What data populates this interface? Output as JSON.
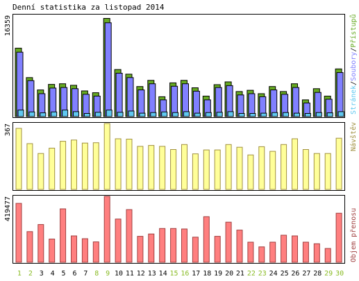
{
  "title": "Denní statistika za listopad 2014",
  "colors": {
    "background": "#ffffff",
    "frame": "#000000",
    "grid": "#000000",
    "hits": "#66aa22",
    "files": "#8080ff",
    "pages": "#60c8f0",
    "visits": "#ffff99",
    "visits_stroke": "#a09040",
    "kbytes": "#ff7f7f",
    "kbytes_stroke": "#a04040",
    "weekend_label": "#88bb22",
    "weekday_label": "#000000"
  },
  "days": [
    "1",
    "2",
    "3",
    "4",
    "5",
    "6",
    "7",
    "8",
    "9",
    "10",
    "11",
    "12",
    "13",
    "14",
    "15",
    "16",
    "17",
    "18",
    "19",
    "20",
    "21",
    "22",
    "23",
    "24",
    "25",
    "26",
    "27",
    "28",
    "29",
    "30"
  ],
  "weekend_days": [
    "1",
    "2",
    "8",
    "9",
    "15",
    "16",
    "22",
    "23",
    "29",
    "30"
  ],
  "chart_data": [
    {
      "type": "bar",
      "id": "hits-files-pages",
      "ymax_label": "16359",
      "ylim": [
        0,
        16359
      ],
      "legend": {
        "pages_label": "Stránek",
        "sep1": "/",
        "files_label": "Soubory",
        "sep2": "/",
        "hits_label": "Přístupů"
      },
      "series": [
        {
          "name": "Přístupů",
          "key": "hits",
          "values": [
            11050,
            6300,
            4300,
            5200,
            5300,
            5050,
            4150,
            3850,
            15850,
            7600,
            6850,
            4850,
            5850,
            3200,
            5450,
            5850,
            4650,
            3300,
            5150,
            5600,
            4050,
            4250,
            3700,
            4850,
            4050,
            5300,
            2700,
            4500,
            3300,
            7700
          ]
        },
        {
          "name": "Soubory",
          "key": "files",
          "values": [
            10400,
            5800,
            3700,
            4600,
            4700,
            4500,
            3600,
            3300,
            15150,
            7000,
            6300,
            4300,
            5300,
            2700,
            4900,
            5300,
            4100,
            2700,
            4700,
            5000,
            3500,
            3700,
            3200,
            4300,
            3600,
            4700,
            2200,
            3900,
            2800,
            7100
          ]
        },
        {
          "name": "Stránek",
          "key": "pages",
          "values": [
            1050,
            750,
            600,
            750,
            1050,
            800,
            500,
            700,
            1050,
            700,
            900,
            550,
            650,
            750,
            650,
            800,
            550,
            650,
            700,
            800,
            500,
            500,
            550,
            650,
            650,
            550,
            500,
            650,
            600,
            800
          ]
        }
      ]
    },
    {
      "type": "bar",
      "id": "visits",
      "ymax_label": "367",
      "ylim": [
        0,
        367
      ],
      "legend": {
        "label": "Návštěv"
      },
      "series": [
        {
          "name": "Návštěv",
          "key": "visits",
          "values": [
            340,
            255,
            200,
            230,
            268,
            275,
            258,
            260,
            367,
            282,
            280,
            240,
            245,
            240,
            222,
            250,
            198,
            220,
            220,
            250,
            235,
            192,
            238,
            212,
            250,
            282,
            222,
            200,
            200,
            285
          ]
        }
      ]
    },
    {
      "type": "bar",
      "id": "kbytes",
      "ymax_label": "419477",
      "ylim": [
        0,
        419477
      ],
      "legend": {
        "label": "Objem přenosu"
      },
      "series": [
        {
          "name": "Objem přenosu",
          "key": "kbytes",
          "values": [
            375000,
            195000,
            240000,
            148000,
            340000,
            168000,
            150000,
            130000,
            419477,
            275000,
            335000,
            165000,
            180000,
            215000,
            215000,
            212000,
            160000,
            290000,
            165000,
            255000,
            205000,
            128000,
            98000,
            128000,
            172000,
            168000,
            128000,
            118000,
            88000,
            312000
          ]
        }
      ]
    }
  ]
}
